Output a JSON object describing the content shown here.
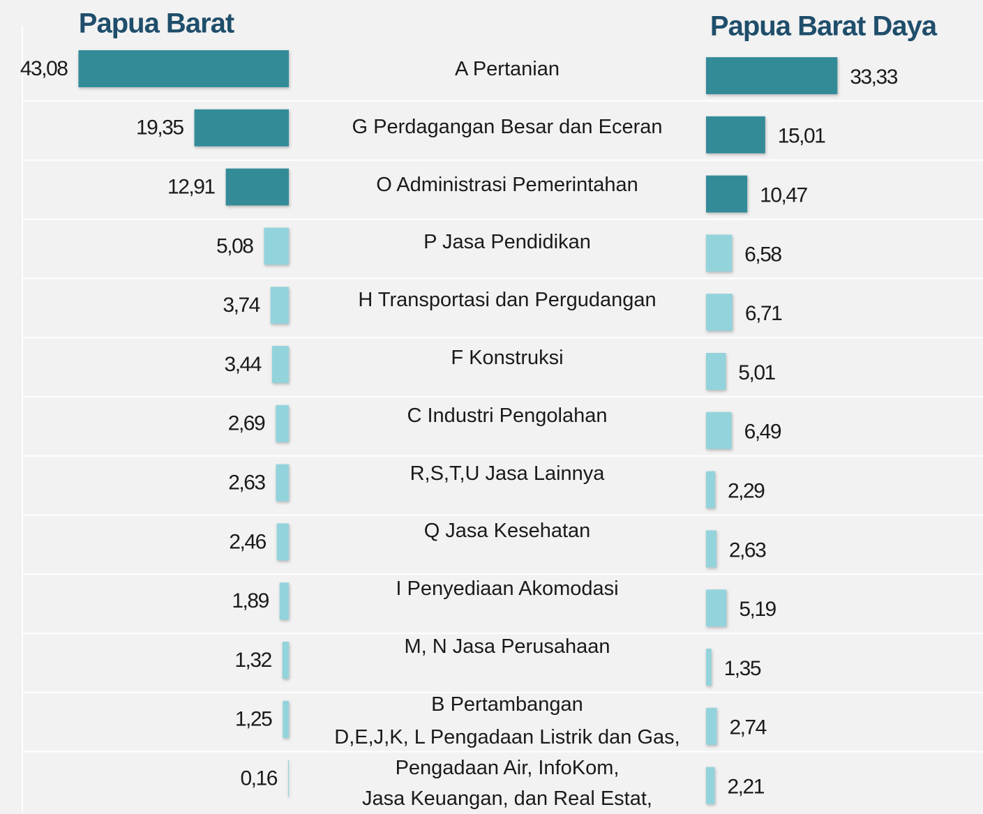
{
  "chart_data": {
    "type": "butterfly",
    "categories": [
      "A Pertanian",
      "G Perdagangan Besar dan Eceran",
      "O Administrasi  Pemerintahan",
      "P Jasa  Pendidikan",
      "H Transportasi dan Pergudangan",
      "F Konstruksi",
      "C Industri Pengolahan",
      "R,S,T,U Jasa Lainnya",
      "Q Jasa Kesehatan",
      "I Penyediaan  Akomodasi",
      "M, N Jasa  Perusahaan",
      "B Pertambangan",
      "D,E,J,K, L Pengadaan  Listrik dan Gas,\nPengadaan  Air, InfoKom,\nJasa Keuangan,  dan Real Estat,"
    ],
    "series": [
      {
        "name": "Papua Barat",
        "values": [
          43.08,
          19.35,
          12.91,
          5.08,
          3.74,
          3.44,
          2.69,
          2.63,
          2.46,
          1.89,
          1.32,
          1.25,
          0.16
        ],
        "value_labels": [
          "43,08",
          "19,35",
          "12,91",
          "5,08",
          "3,74",
          "3,44",
          "2,69",
          "2,63",
          "2,46",
          "1,89",
          "1,32",
          "1,25",
          "0,16"
        ],
        "colors": [
          "#338b98",
          "#338b98",
          "#338b98",
          "#93d3dc",
          "#93d3dc",
          "#93d3dc",
          "#93d3dc",
          "#93d3dc",
          "#93d3dc",
          "#93d3dc",
          "#93d3dc",
          "#93d3dc",
          "#93d3dc"
        ]
      },
      {
        "name": "Papua Barat Daya",
        "values": [
          33.33,
          15.01,
          10.47,
          6.58,
          6.71,
          5.01,
          6.49,
          2.29,
          2.63,
          5.19,
          1.35,
          2.74,
          2.21
        ],
        "value_labels": [
          "33,33",
          "15,01",
          "10,47",
          "6,58",
          "6,71",
          "5,01",
          "6,49",
          "2,29",
          "2,63",
          "5,19",
          "1,35",
          "2,74",
          "2,21"
        ],
        "colors": [
          "#338b98",
          "#338b98",
          "#338b98",
          "#93d3dc",
          "#93d3dc",
          "#93d3dc",
          "#93d3dc",
          "#93d3dc",
          "#93d3dc",
          "#93d3dc",
          "#93d3dc",
          "#93d3dc",
          "#93d3dc"
        ]
      }
    ]
  }
}
